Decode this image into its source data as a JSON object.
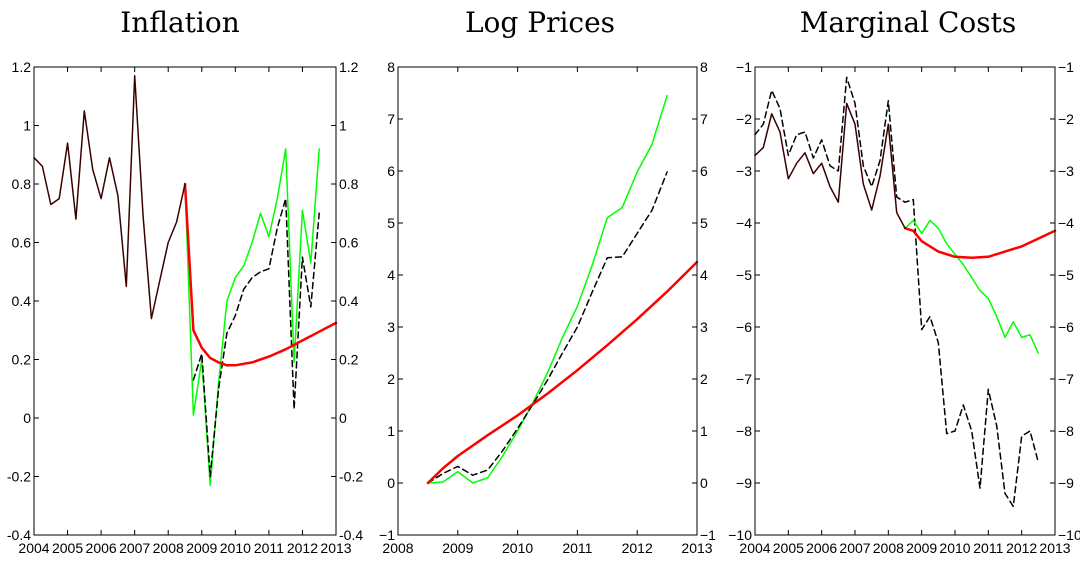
{
  "chart_data": [
    {
      "type": "line",
      "title": "Inflation",
      "xlim": [
        2004,
        2013
      ],
      "ylim": [
        -0.4,
        1.2
      ],
      "xticks": [
        2004,
        2005,
        2006,
        2007,
        2008,
        2009,
        2010,
        2011,
        2012,
        2013
      ],
      "yticks": [
        -0.4,
        -0.2,
        0,
        0.2,
        0.4,
        0.6,
        0.8,
        1,
        1.2
      ],
      "ytick_labels": [
        "-0.4",
        "-0.2",
        "0",
        "0.2",
        "0.4",
        "0.6",
        "0.8",
        "1",
        "1.2"
      ],
      "right_yticks": true,
      "grid": false,
      "series": [
        {
          "color": "#00ff00",
          "style": "solid",
          "width": 1.5,
          "x": [
            2008.5,
            2008.75,
            2009.0,
            2009.25,
            2009.5,
            2009.75,
            2010.0,
            2010.25,
            2010.5,
            2010.75,
            2011.0,
            2011.25,
            2011.5,
            2011.75,
            2012.0,
            2012.25,
            2012.5
          ],
          "y": [
            0.8,
            0.01,
            0.2,
            -0.23,
            0.12,
            0.4,
            0.48,
            0.52,
            0.6,
            0.7,
            0.62,
            0.75,
            0.92,
            0.19,
            0.71,
            0.53,
            0.92
          ]
        },
        {
          "color": "#000000",
          "style": "dashed",
          "width": 1.5,
          "x": [
            2008.75,
            2009.0,
            2009.25,
            2009.5,
            2009.75,
            2010.0,
            2010.25,
            2010.5,
            2010.75,
            2011.0,
            2011.25,
            2011.5,
            2011.75,
            2012.0,
            2012.25,
            2012.5
          ],
          "y": [
            0.13,
            0.22,
            -0.2,
            0.1,
            0.29,
            0.35,
            0.44,
            0.48,
            0.5,
            0.51,
            0.65,
            0.75,
            0.03,
            0.55,
            0.38,
            0.7
          ]
        },
        {
          "color": "#ff0000",
          "style": "solid",
          "width": 2.5,
          "x": [
            2008.5,
            2008.75,
            2009.0,
            2009.25,
            2009.5,
            2009.75,
            2010.0,
            2010.5,
            2011.0,
            2011.5,
            2012.0,
            2012.5,
            2013.0
          ],
          "y": [
            0.8,
            0.3,
            0.24,
            0.205,
            0.19,
            0.18,
            0.18,
            0.19,
            0.21,
            0.235,
            0.265,
            0.295,
            0.325
          ]
        },
        {
          "color": "#3a0000",
          "style": "solid",
          "width": 1.5,
          "x": [
            2004.0,
            2004.25,
            2004.5,
            2004.75,
            2005.0,
            2005.25,
            2005.5,
            2005.75,
            2006.0,
            2006.25,
            2006.5,
            2006.75,
            2007.0,
            2007.25,
            2007.5,
            2007.75,
            2008.0,
            2008.25,
            2008.5
          ],
          "y": [
            0.89,
            0.86,
            0.73,
            0.75,
            0.94,
            0.68,
            1.05,
            0.85,
            0.75,
            0.89,
            0.76,
            0.45,
            1.17,
            0.69,
            0.34,
            0.47,
            0.6,
            0.67,
            0.8
          ]
        }
      ]
    },
    {
      "type": "line",
      "title": "Log Prices",
      "xlim": [
        2008,
        2013
      ],
      "ylim": [
        -1,
        8
      ],
      "xticks": [
        2008,
        2009,
        2010,
        2011,
        2012,
        2013
      ],
      "yticks": [
        -1,
        0,
        1,
        2,
        3,
        4,
        5,
        6,
        7,
        8
      ],
      "ytick_labels": [
        "−1",
        "0",
        "1",
        "2",
        "3",
        "4",
        "5",
        "6",
        "7",
        "8"
      ],
      "right_yticks": true,
      "grid": false,
      "series": [
        {
          "color": "#00ff00",
          "style": "solid",
          "width": 1.5,
          "x": [
            2008.5,
            2008.75,
            2009.0,
            2009.25,
            2009.5,
            2009.75,
            2010.0,
            2010.25,
            2010.5,
            2010.75,
            2011.0,
            2011.25,
            2011.5,
            2011.75,
            2012.0,
            2012.25,
            2012.5
          ],
          "y": [
            0.0,
            0.02,
            0.22,
            0.0,
            0.1,
            0.52,
            1.0,
            1.53,
            2.12,
            2.8,
            3.4,
            4.2,
            5.1,
            5.3,
            5.98,
            6.52,
            7.45
          ]
        },
        {
          "color": "#000000",
          "style": "dashed",
          "width": 1.5,
          "x": [
            2008.5,
            2008.75,
            2009.0,
            2009.25,
            2009.5,
            2009.75,
            2010.0,
            2010.25,
            2010.5,
            2010.75,
            2011.0,
            2011.25,
            2011.5,
            2011.75,
            2012.0,
            2012.25,
            2012.5
          ],
          "y": [
            0.0,
            0.18,
            0.32,
            0.15,
            0.25,
            0.62,
            1.05,
            1.5,
            1.98,
            2.5,
            3.0,
            3.68,
            4.33,
            4.35,
            4.8,
            5.25,
            5.98
          ]
        },
        {
          "color": "#ff0000",
          "style": "solid",
          "width": 2.5,
          "x": [
            2008.5,
            2008.75,
            2009.0,
            2009.5,
            2010.0,
            2010.5,
            2011.0,
            2011.5,
            2012.0,
            2012.5,
            2013.0
          ],
          "y": [
            0.0,
            0.28,
            0.52,
            0.92,
            1.3,
            1.72,
            2.17,
            2.65,
            3.15,
            3.68,
            4.25
          ]
        }
      ]
    },
    {
      "type": "line",
      "title": "Marginal Costs",
      "xlim": [
        2004,
        2013
      ],
      "ylim": [
        -10,
        -1
      ],
      "xticks": [
        2004,
        2005,
        2006,
        2007,
        2008,
        2009,
        2010,
        2011,
        2012,
        2013
      ],
      "yticks": [
        -10,
        -9,
        -8,
        -7,
        -6,
        -5,
        -4,
        -3,
        -2,
        -1
      ],
      "ytick_labels": [
        "−10",
        "−9",
        "−8",
        "−7",
        "−6",
        "−5",
        "−4",
        "−3",
        "−2",
        "−1"
      ],
      "right_yticks": true,
      "grid": false,
      "series": [
        {
          "color": "#000000",
          "style": "dashed",
          "width": 1.5,
          "x": [
            2004.0,
            2004.25,
            2004.5,
            2004.75,
            2005.0,
            2005.25,
            2005.5,
            2005.75,
            2006.0,
            2006.25,
            2006.5,
            2006.75,
            2007.0,
            2007.25,
            2007.5,
            2007.75,
            2008.0,
            2008.25,
            2008.5,
            2008.75,
            2009.0,
            2009.25,
            2009.5,
            2009.75,
            2010.0,
            2010.25,
            2010.5,
            2010.75,
            2011.0,
            2011.25,
            2011.5,
            2011.75,
            2012.0,
            2012.25,
            2012.5
          ],
          "y": [
            -2.3,
            -2.1,
            -1.45,
            -1.8,
            -2.7,
            -2.3,
            -2.25,
            -2.75,
            -2.4,
            -2.9,
            -3.0,
            -1.2,
            -1.7,
            -2.9,
            -3.3,
            -2.8,
            -1.65,
            -3.5,
            -3.6,
            -3.55,
            -6.05,
            -5.8,
            -6.3,
            -8.05,
            -8.0,
            -7.5,
            -8.0,
            -9.1,
            -7.2,
            -7.9,
            -9.2,
            -9.45,
            -8.1,
            -8.0,
            -8.6
          ]
        },
        {
          "color": "#00ff00",
          "style": "solid",
          "width": 1.5,
          "x": [
            2008.5,
            2008.75,
            2009.0,
            2009.25,
            2009.5,
            2009.75,
            2010.0,
            2010.25,
            2010.5,
            2010.75,
            2011.0,
            2011.25,
            2011.5,
            2011.75,
            2012.0,
            2012.25,
            2012.5
          ],
          "y": [
            -4.1,
            -3.95,
            -4.2,
            -3.95,
            -4.1,
            -4.4,
            -4.6,
            -4.8,
            -5.05,
            -5.3,
            -5.45,
            -5.8,
            -6.2,
            -5.9,
            -6.2,
            -6.15,
            -6.5
          ]
        },
        {
          "color": "#ff0000",
          "style": "solid",
          "width": 2.5,
          "x": [
            2008.5,
            2008.75,
            2009.0,
            2009.5,
            2010.0,
            2010.5,
            2011.0,
            2011.5,
            2012.0,
            2012.5,
            2013.0
          ],
          "y": [
            -4.1,
            -4.15,
            -4.35,
            -4.55,
            -4.65,
            -4.67,
            -4.65,
            -4.55,
            -4.45,
            -4.3,
            -4.15
          ]
        },
        {
          "color": "#3a0000",
          "style": "solid",
          "width": 1.5,
          "x": [
            2004.0,
            2004.25,
            2004.5,
            2004.75,
            2005.0,
            2005.25,
            2005.5,
            2005.75,
            2006.0,
            2006.25,
            2006.5,
            2006.75,
            2007.0,
            2007.25,
            2007.5,
            2007.75,
            2008.0,
            2008.25,
            2008.5
          ],
          "y": [
            -2.7,
            -2.55,
            -1.9,
            -2.25,
            -3.15,
            -2.85,
            -2.65,
            -3.05,
            -2.85,
            -3.3,
            -3.6,
            -1.7,
            -2.1,
            -3.25,
            -3.75,
            -3.1,
            -2.1,
            -3.8,
            -4.1
          ]
        }
      ]
    }
  ]
}
